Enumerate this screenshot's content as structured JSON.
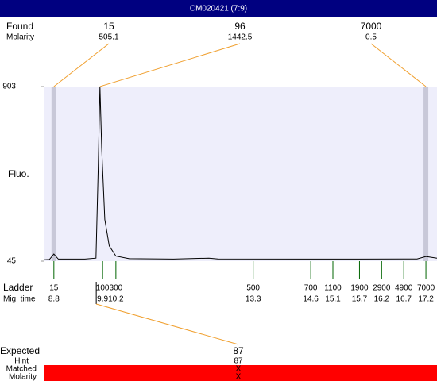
{
  "header": {
    "title": "CM020421 (7:9)"
  },
  "chart_data": {
    "type": "line",
    "ylabel": "Fluo.",
    "color": "#000000",
    "xlim": [
      8.57,
      17.45
    ],
    "ylim": [
      45,
      903
    ],
    "yticks": [
      45,
      903
    ],
    "x": [
      8.57,
      8.7,
      8.8,
      8.9,
      9.5,
      9.75,
      9.8,
      9.84,
      9.88,
      9.95,
      10.05,
      10.2,
      10.5,
      11.5,
      12.3,
      12.5,
      15.7,
      17.0,
      17.2,
      17.45
    ],
    "values": [
      52,
      53,
      80,
      55,
      55,
      60,
      500,
      903,
      600,
      250,
      120,
      70,
      57,
      55,
      60,
      56,
      55,
      56,
      68,
      60
    ]
  },
  "found": {
    "label": "Found",
    "sublabel": "Molarity",
    "peaks": [
      {
        "size": 15,
        "x": 8.8,
        "molarity": 505.1
      },
      {
        "size": 96,
        "x": 9.84,
        "molarity": 1442.5
      },
      {
        "size": 7000,
        "x": 17.2,
        "molarity": 0.5
      }
    ]
  },
  "ladder": {
    "label": "Ladder",
    "sublabel": "Mig. time",
    "sizes": [
      15,
      100,
      300,
      500,
      700,
      1100,
      1900,
      2900,
      4900,
      7000
    ],
    "times": [
      8.8,
      9.9,
      10.2,
      13.3,
      14.6,
      15.1,
      15.7,
      16.2,
      16.7,
      17.2
    ]
  },
  "expected": {
    "label": "Expected",
    "value": 87,
    "link_time": 9.9,
    "rows": [
      {
        "label": "Hint",
        "value": 87
      },
      {
        "label": "Matched",
        "value": "X"
      },
      {
        "label": "Molarity",
        "value": "X"
      }
    ]
  }
}
